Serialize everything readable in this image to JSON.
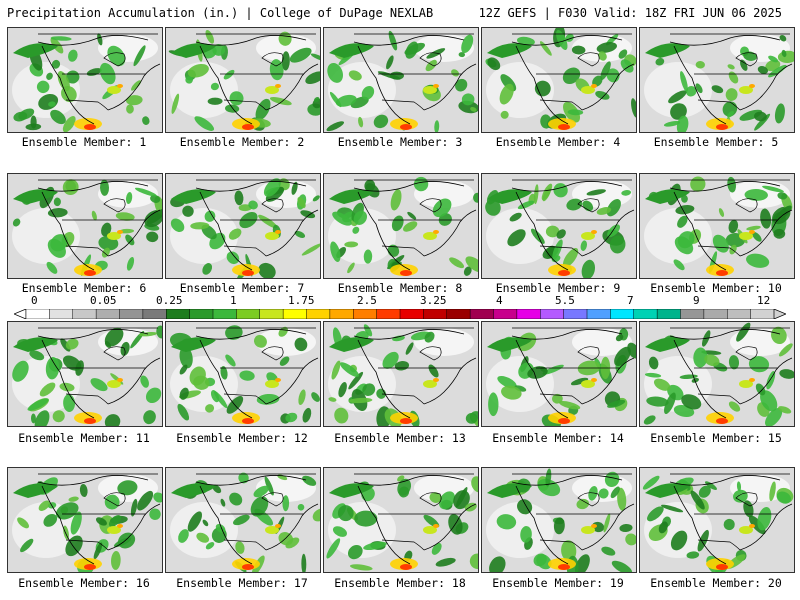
{
  "header": {
    "left": "Precipitation Accumulation (in.) | College of DuPage NEXLAB",
    "right": "12Z GEFS | F030 Valid: 18Z FRI JUN 06 2025"
  },
  "members": [
    "Ensemble Member: 1",
    "Ensemble Member: 2",
    "Ensemble Member: 3",
    "Ensemble Member: 4",
    "Ensemble Member: 5",
    "Ensemble Member: 6",
    "Ensemble Member: 7",
    "Ensemble Member: 8",
    "Ensemble Member: 9",
    "Ensemble Member: 10",
    "Ensemble Member: 11",
    "Ensemble Member: 12",
    "Ensemble Member: 13",
    "Ensemble Member: 14",
    "Ensemble Member: 15",
    "Ensemble Member: 16",
    "Ensemble Member: 17",
    "Ensemble Member: 18",
    "Ensemble Member: 19",
    "Ensemble Member: 20"
  ],
  "colorbar": {
    "labels": [
      "0",
      "0.05",
      "0.25",
      "1",
      "1.75",
      "2.5",
      "3.25",
      "4",
      "5.5",
      "7",
      "9",
      "12"
    ],
    "colors": [
      "#ffffff",
      "#e2e2e2",
      "#c8c8c8",
      "#aeaeae",
      "#949494",
      "#7a7a7a",
      "#1e7d1e",
      "#2a9a2a",
      "#3cb83c",
      "#7ccc22",
      "#c8e61e",
      "#ffff00",
      "#ffd200",
      "#ffa800",
      "#ff7e00",
      "#ff3c00",
      "#e80000",
      "#c00000",
      "#9a0000",
      "#a00050",
      "#c8008c",
      "#e600e6",
      "#b45aff",
      "#7878ff",
      "#50a0ff",
      "#00e6ff",
      "#00d2b4",
      "#00b48c",
      "#969696",
      "#aaaaaa",
      "#bebebe",
      "#d2d2d2"
    ]
  }
}
